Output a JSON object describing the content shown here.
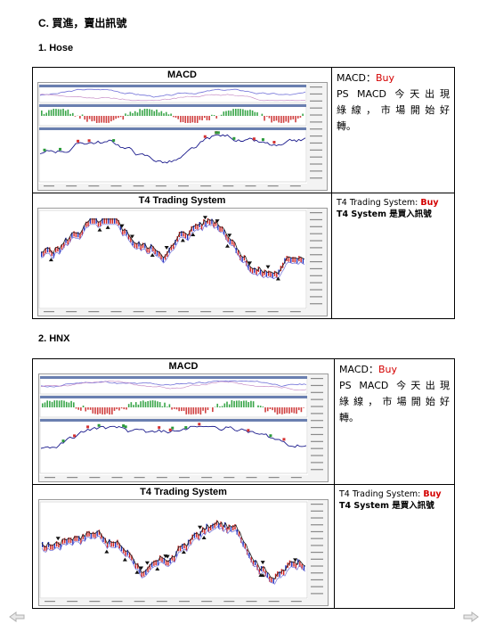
{
  "section_title": "C. 買進，賣出訊號",
  "sections": [
    {
      "title": "1. Hose",
      "macd_header": "MACD",
      "macd_note": {
        "label": "MACD：",
        "signal": "Buy",
        "line1": "PS MACD 今天出現",
        "line2": "綠線，市場開始好",
        "line3": "轉。"
      },
      "t4_header": "T4 Trading System",
      "t4_note": {
        "label": "T4 Trading System: ",
        "signal": "Buy",
        "line2": "T4 System 是買入訊號"
      }
    },
    {
      "title": "2. HNX",
      "macd_header": "MACD",
      "macd_note": {
        "label": "MACD：",
        "signal": "Buy",
        "line1": "PS MACD 今天出現",
        "line2": "綠線，市場開始好",
        "line3": "轉。"
      },
      "t4_header": "T4 Trading System",
      "t4_note": {
        "label": "T4 Trading System: ",
        "signal": "Buy",
        "line2": "T4 System 是買入訊號"
      }
    }
  ],
  "colors": {
    "signal_red": "#d40000",
    "price_line": "#1a1a8c",
    "macd_line": "#7070d8",
    "histogram_up": "#3aa64a",
    "histogram_down": "#d04040"
  },
  "nav": {
    "prev_icon": "left-arrow-icon",
    "next_icon": "right-arrow-icon"
  }
}
